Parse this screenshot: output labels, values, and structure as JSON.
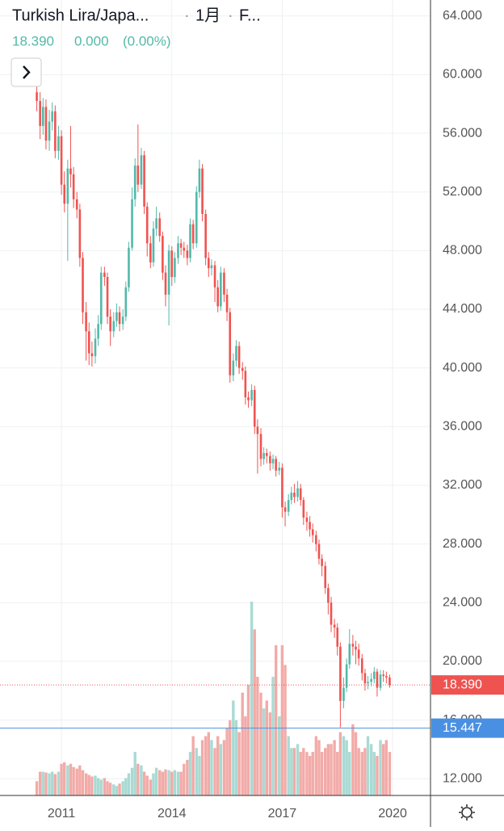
{
  "chart_data": {
    "type": "candlestick",
    "title": "Turkish Lira/Japa...",
    "interval": "1月",
    "source": "F...",
    "last": "18.390",
    "change": "0.000",
    "change_pct": "(0.00%)",
    "up_color": "#53b9a9",
    "down_color": "#ef5350",
    "up_volume_color": "#a9dad3",
    "down_volume_color": "#f2aba8",
    "xlim": [
      2009.33,
      2021.03
    ],
    "xticks": [
      2011,
      2014,
      2017,
      2020
    ],
    "ylim": [
      10.857,
      65.086
    ],
    "yticks": [
      {
        "value": 12,
        "label": "12.000"
      },
      {
        "value": 16,
        "label": "16.000"
      },
      {
        "value": 20,
        "label": "20.000"
      },
      {
        "value": 24,
        "label": "24.000"
      },
      {
        "value": 28,
        "label": "28.000"
      },
      {
        "value": 32,
        "label": "32.000"
      },
      {
        "value": 36,
        "label": "36.000"
      },
      {
        "value": 40,
        "label": "40.000"
      },
      {
        "value": 44,
        "label": "44.000"
      },
      {
        "value": 48,
        "label": "48.000"
      },
      {
        "value": 52,
        "label": "52.000"
      },
      {
        "value": 56,
        "label": "56.000"
      },
      {
        "value": 60,
        "label": "60.000"
      },
      {
        "value": 64,
        "label": "64.000"
      }
    ],
    "grid": true,
    "price_lines": [
      {
        "value": 18.39,
        "label": "18.390",
        "color": "#ef5350",
        "dotted": true
      },
      {
        "value": 15.447,
        "label": "15.447",
        "color": "#4a90e2",
        "dotted": false
      }
    ],
    "x": [
      2010.33,
      2010.42,
      2010.5,
      2010.58,
      2010.67,
      2010.75,
      2010.83,
      2010.92,
      2011,
      2011.08,
      2011.17,
      2011.25,
      2011.33,
      2011.42,
      2011.5,
      2011.58,
      2011.67,
      2011.75,
      2011.83,
      2011.92,
      2012,
      2012.08,
      2012.17,
      2012.25,
      2012.33,
      2012.42,
      2012.5,
      2012.58,
      2012.67,
      2012.75,
      2012.83,
      2012.92,
      2013,
      2013.08,
      2013.17,
      2013.25,
      2013.33,
      2013.42,
      2013.5,
      2013.58,
      2013.67,
      2013.75,
      2013.83,
      2013.92,
      2014,
      2014.08,
      2014.17,
      2014.25,
      2014.33,
      2014.42,
      2014.5,
      2014.58,
      2014.67,
      2014.75,
      2014.83,
      2014.92,
      2015,
      2015.08,
      2015.17,
      2015.25,
      2015.33,
      2015.42,
      2015.5,
      2015.58,
      2015.67,
      2015.75,
      2015.83,
      2015.92,
      2016,
      2016.08,
      2016.17,
      2016.25,
      2016.33,
      2016.42,
      2016.5,
      2016.58,
      2016.67,
      2016.75,
      2016.83,
      2016.92,
      2017,
      2017.08,
      2017.17,
      2017.25,
      2017.33,
      2017.42,
      2017.5,
      2017.58,
      2017.67,
      2017.75,
      2017.83,
      2017.92,
      2018,
      2018.08,
      2018.17,
      2018.25,
      2018.33,
      2018.42,
      2018.5,
      2018.58,
      2018.67,
      2018.75,
      2018.83,
      2018.92,
      2019,
      2019.08,
      2019.17,
      2019.25,
      2019.33,
      2019.42,
      2019.5,
      2019.58,
      2019.67,
      2019.75,
      2019.83,
      2019.92
    ],
    "open": [
      58.8,
      58.2,
      56.5,
      57.8,
      55.5,
      56.8,
      57.5,
      54.8,
      55.8,
      52.5,
      51.2,
      53.6,
      53.2,
      51.5,
      50.8,
      47.5,
      43.8,
      42.5,
      41.0,
      40.8,
      42.0,
      43.0,
      46.5,
      46.2,
      43.5,
      42.5,
      43.2,
      43.8,
      43.0,
      43.5,
      45.5,
      48.2,
      51.5,
      53.8,
      52.5,
      54.5,
      51.0,
      48.5,
      47.2,
      49.5,
      50.2,
      49.0,
      46.5,
      45.0,
      48.0,
      46.2,
      47.5,
      48.5,
      48.2,
      48.0,
      47.5,
      49.8,
      48.5,
      52.0,
      53.6,
      50.5,
      47.5,
      46.8,
      47.0,
      45.5,
      44.2,
      46.5,
      45.0,
      43.8,
      39.5,
      40.5,
      41.5,
      40.0,
      39.8,
      38.0,
      37.8,
      38.5,
      36.0,
      35.5,
      33.8,
      34.2,
      34.0,
      33.5,
      33.8,
      33.0,
      33.2,
      30.5,
      30.2,
      31.0,
      31.5,
      31.2,
      31.8,
      31.0,
      29.8,
      29.5,
      29.0,
      28.6,
      28.0,
      27.0,
      26.5,
      25.0,
      24.0,
      22.5,
      22.3,
      21.0,
      17.3,
      18.2,
      19.8,
      21.2,
      21.0,
      20.8,
      20.2,
      19.2,
      18.5,
      18.6,
      18.8,
      19.3,
      18.2,
      19.1,
      19.0,
      18.9
    ],
    "high": [
      61.0,
      58.8,
      58.4,
      58.3,
      57.6,
      58.1,
      57.9,
      56.5,
      56.2,
      53.4,
      54.2,
      56.5,
      53.7,
      52.0,
      51.2,
      47.9,
      44.5,
      43.1,
      41.8,
      42.7,
      43.6,
      46.9,
      46.9,
      46.5,
      44.0,
      43.8,
      44.4,
      44.2,
      44.0,
      45.9,
      48.6,
      52.3,
      54.3,
      56.6,
      55.0,
      54.8,
      51.3,
      49.0,
      50.0,
      51.0,
      50.6,
      49.3,
      47.0,
      48.4,
      48.3,
      47.9,
      49.0,
      48.8,
      48.6,
      48.4,
      50.2,
      50.1,
      52.4,
      54.2,
      53.9,
      50.8,
      47.9,
      47.4,
      47.3,
      46.0,
      46.9,
      46.8,
      45.4,
      44.1,
      41.0,
      41.9,
      41.8,
      40.4,
      40.1,
      38.4,
      38.9,
      38.8,
      36.5,
      35.9,
      34.6,
      34.5,
      34.3,
      34.1,
      34.0,
      33.6,
      33.5,
      30.9,
      31.4,
      31.9,
      32.1,
      32.3,
      32.1,
      31.2,
      30.2,
      29.9,
      29.4,
      28.9,
      28.3,
      27.3,
      26.8,
      25.3,
      24.4,
      22.9,
      22.6,
      21.3,
      18.9,
      20.2,
      22.2,
      21.8,
      21.4,
      21.2,
      20.5,
      19.5,
      19.0,
      19.2,
      19.6,
      19.5,
      19.4,
      19.4,
      19.3,
      19.1
    ],
    "low": [
      57.5,
      55.6,
      55.9,
      54.9,
      54.8,
      56.2,
      54.3,
      54.2,
      51.8,
      50.6,
      47.3,
      52.3,
      50.9,
      50.2,
      46.9,
      43.0,
      40.5,
      40.2,
      40.1,
      40.3,
      41.5,
      42.6,
      45.6,
      43.0,
      41.5,
      42.1,
      42.8,
      42.5,
      42.6,
      43.2,
      45.2,
      48.0,
      51.0,
      52.0,
      52.2,
      50.5,
      47.6,
      46.8,
      46.9,
      49.0,
      48.6,
      46.0,
      44.2,
      42.9,
      45.6,
      45.8,
      47.1,
      47.7,
      47.5,
      47.0,
      47.2,
      48.1,
      48.2,
      51.6,
      50.0,
      47.0,
      46.2,
      46.3,
      44.5,
      43.8,
      43.9,
      44.5,
      43.2,
      39.0,
      39.1,
      40.1,
      39.6,
      39.2,
      37.5,
      37.3,
      37.4,
      35.5,
      32.8,
      33.3,
      33.4,
      33.5,
      33.0,
      33.1,
      32.6,
      32.7,
      29.8,
      29.2,
      29.9,
      30.7,
      30.8,
      30.9,
      30.6,
      29.3,
      28.9,
      28.5,
      28.1,
      27.5,
      26.6,
      25.8,
      24.6,
      23.2,
      22.0,
      21.6,
      20.4,
      15.5,
      16.8,
      17.9,
      19.5,
      20.4,
      19.8,
      19.7,
      18.7,
      18.0,
      18.1,
      18.3,
      18.5,
      17.6,
      18.0,
      18.6,
      18.5,
      18.2
    ],
    "close": [
      58.2,
      56.5,
      57.8,
      55.5,
      56.8,
      57.5,
      54.8,
      55.8,
      52.5,
      51.2,
      53.6,
      53.2,
      51.5,
      50.8,
      47.5,
      43.8,
      42.5,
      41.0,
      40.8,
      42.0,
      43.0,
      46.5,
      46.2,
      43.5,
      42.5,
      43.2,
      43.8,
      43.0,
      43.5,
      45.5,
      48.2,
      51.5,
      53.8,
      52.5,
      54.5,
      51.0,
      48.5,
      47.2,
      49.5,
      50.2,
      49.0,
      46.5,
      45.0,
      48.0,
      46.2,
      47.5,
      48.5,
      48.2,
      48.0,
      47.5,
      49.8,
      48.5,
      52.0,
      53.6,
      50.5,
      47.5,
      46.8,
      47.0,
      45.5,
      44.2,
      46.5,
      45.0,
      43.8,
      39.5,
      40.5,
      41.5,
      40.0,
      39.8,
      38.0,
      37.8,
      38.5,
      36.0,
      35.5,
      33.8,
      34.2,
      34.0,
      33.5,
      33.8,
      33.0,
      33.2,
      30.5,
      30.2,
      31.0,
      31.5,
      31.2,
      31.8,
      31.0,
      29.8,
      29.5,
      29.0,
      28.6,
      28.0,
      27.0,
      26.5,
      25.0,
      24.0,
      22.5,
      22.3,
      21.0,
      17.3,
      18.2,
      19.8,
      21.2,
      21.0,
      20.8,
      20.2,
      19.2,
      18.5,
      18.6,
      18.8,
      19.3,
      18.2,
      19.1,
      19.0,
      18.9,
      18.39
    ],
    "volume": [
      18,
      30,
      30,
      29,
      28,
      30,
      27,
      30,
      40,
      42,
      38,
      40,
      36,
      34,
      38,
      32,
      28,
      26,
      24,
      25,
      22,
      20,
      22,
      18,
      16,
      14,
      12,
      15,
      18,
      22,
      28,
      35,
      55,
      40,
      38,
      30,
      25,
      20,
      28,
      35,
      32,
      30,
      33,
      32,
      30,
      32,
      30,
      30,
      40,
      45,
      55,
      75,
      60,
      50,
      70,
      75,
      80,
      70,
      60,
      75,
      65,
      70,
      85,
      95,
      120,
      95,
      80,
      130,
      100,
      140,
      245,
      210,
      150,
      130,
      110,
      120,
      105,
      150,
      190,
      100,
      190,
      165,
      75,
      60,
      60,
      65,
      55,
      60,
      55,
      50,
      55,
      75,
      70,
      55,
      60,
      65,
      65,
      70,
      55,
      80,
      75,
      70,
      55,
      90,
      80,
      60,
      55,
      60,
      75,
      65,
      55,
      50,
      70,
      65,
      70,
      55
    ]
  }
}
